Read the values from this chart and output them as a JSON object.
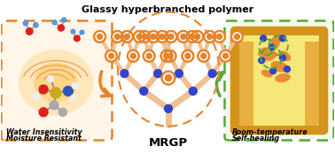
{
  "title": "Glassy hyperbranched polymer",
  "label_mrgp": "MRGP",
  "label_left_line1": "Water Insensitivity",
  "label_left_line2": "Moisture Resistant",
  "label_right_line1": "Room-temperature",
  "label_right_line2": "Self-healing",
  "bg_color": "#ffffff",
  "orange": "#E8832A",
  "orange_light": "#F0B07A",
  "orange_box_bg": "#FFF3E8",
  "green": "#55AA33",
  "green_box_bg": "#F8F8F0",
  "blue": "#3344CC",
  "wood_amber": "#D4931A",
  "wood_light": "#F5E070",
  "wood_tan": "#E8B040"
}
